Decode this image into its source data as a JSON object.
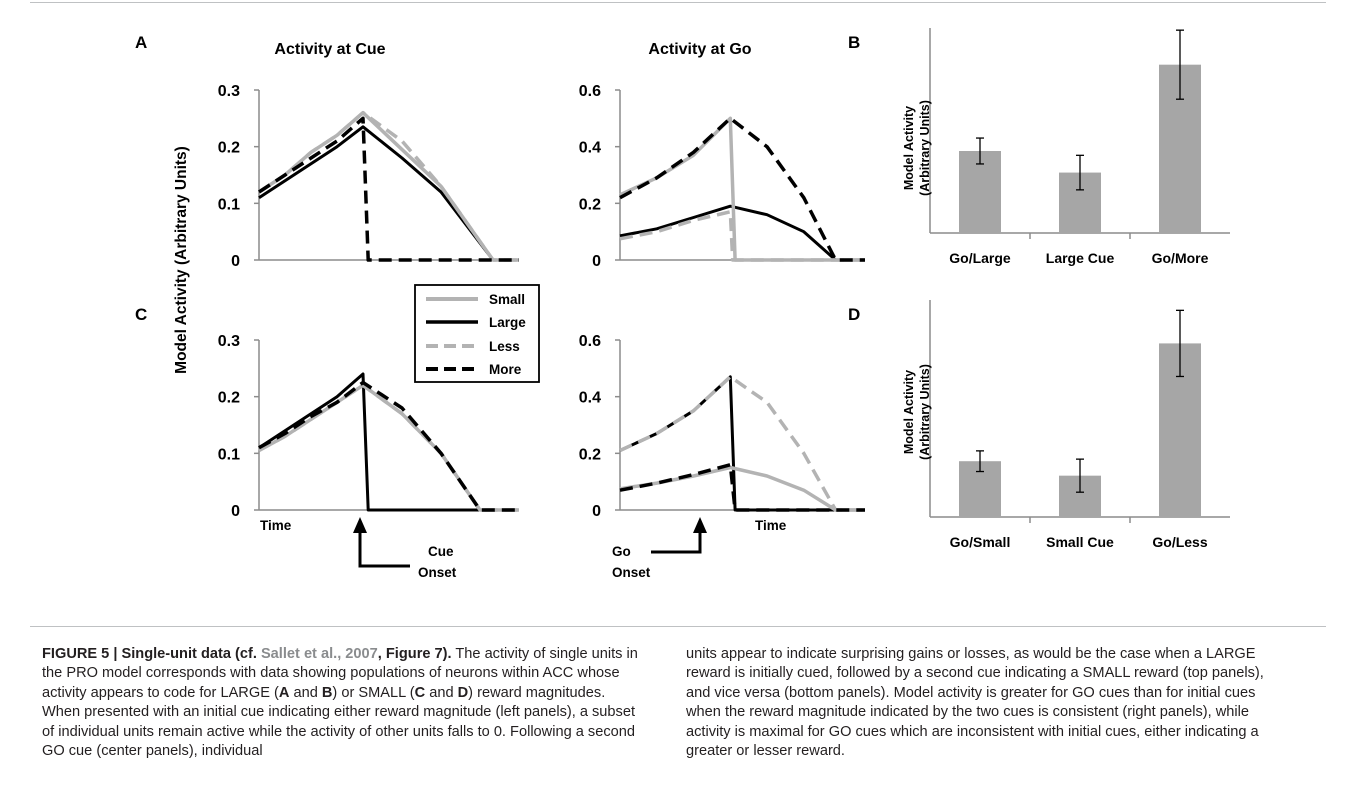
{
  "panel_letters": [
    "A",
    "B",
    "C",
    "D"
  ],
  "panel_titles": {
    "cue": "Activity at Cue",
    "go": "Activity at Go"
  },
  "shared_ylabel": "Model Activity (Arbitrary Units)",
  "bar_ylabel_line1": "Model Activity",
  "bar_ylabel_line2": "(Arbitrary Units)",
  "annotations": {
    "time_left": "Time",
    "time_right": "Time",
    "cue_onset_1": "Cue",
    "cue_onset_2": "Onset",
    "go_onset_1": "Go",
    "go_onset_2": "Onset"
  },
  "legend": [
    {
      "label": "Small",
      "color": "#b3b3b3",
      "dashed": false
    },
    {
      "label": "Large",
      "color": "#000000",
      "dashed": false
    },
    {
      "label": "Less",
      "color": "#b3b3b3",
      "dashed": true
    },
    {
      "label": "More",
      "color": "#000000",
      "dashed": true
    }
  ],
  "colors": {
    "light": "#b3b3b3",
    "dark": "#000000",
    "bar": "#a6a6a6",
    "axis": "#8c8c8c"
  },
  "chart_data": [
    {
      "id": "A-cue",
      "type": "line",
      "title": "Activity at Cue",
      "yticks": [
        "0.3",
        "0.2",
        "0.1",
        "0"
      ],
      "ylim": [
        0,
        0.3
      ],
      "xlim": [
        0,
        100
      ],
      "series": [
        {
          "name": "Small",
          "points": [
            [
              0,
              0.12
            ],
            [
              10,
              0.15
            ],
            [
              20,
              0.19
            ],
            [
              30,
              0.22
            ],
            [
              40,
              0.26
            ],
            [
              70,
              0.13
            ],
            [
              90,
              0.0
            ],
            [
              100,
              0.0
            ]
          ]
        },
        {
          "name": "Large",
          "points": [
            [
              0,
              0.11
            ],
            [
              10,
              0.14
            ],
            [
              20,
              0.17
            ],
            [
              30,
              0.2
            ],
            [
              40,
              0.235
            ],
            [
              55,
              0.18
            ],
            [
              70,
              0.12
            ],
            [
              90,
              0.0
            ],
            [
              100,
              0.0
            ]
          ]
        },
        {
          "name": "Less",
          "points": [
            [
              0,
              0.12
            ],
            [
              10,
              0.15
            ],
            [
              20,
              0.19
            ],
            [
              30,
              0.22
            ],
            [
              40,
              0.26
            ],
            [
              55,
              0.21
            ],
            [
              70,
              0.13
            ],
            [
              90,
              0.0
            ],
            [
              100,
              0.0
            ]
          ]
        },
        {
          "name": "More",
          "points": [
            [
              0,
              0.12
            ],
            [
              10,
              0.15
            ],
            [
              20,
              0.18
            ],
            [
              30,
              0.21
            ],
            [
              40,
              0.25
            ],
            [
              42,
              0.0
            ],
            [
              100,
              0.0
            ]
          ]
        }
      ]
    },
    {
      "id": "A-go",
      "type": "line",
      "title": "Activity at Go",
      "yticks": [
        "0.6",
        "0.4",
        "0.2",
        "0"
      ],
      "ylim": [
        0,
        0.6
      ],
      "xlim": [
        0,
        100
      ],
      "series": [
        {
          "name": "Small",
          "points": [
            [
              0,
              0.23
            ],
            [
              15,
              0.29
            ],
            [
              30,
              0.37
            ],
            [
              45,
              0.5
            ],
            [
              47,
              0.0
            ],
            [
              100,
              0.0
            ]
          ]
        },
        {
          "name": "Large",
          "points": [
            [
              0,
              0.085
            ],
            [
              15,
              0.11
            ],
            [
              30,
              0.15
            ],
            [
              45,
              0.19
            ],
            [
              60,
              0.16
            ],
            [
              75,
              0.1
            ],
            [
              88,
              0.0
            ],
            [
              100,
              0.0
            ]
          ]
        },
        {
          "name": "Less",
          "points": [
            [
              0,
              0.075
            ],
            [
              15,
              0.1
            ],
            [
              30,
              0.14
            ],
            [
              45,
              0.17
            ],
            [
              46,
              0.0
            ],
            [
              100,
              0.0
            ]
          ]
        },
        {
          "name": "More",
          "points": [
            [
              0,
              0.22
            ],
            [
              15,
              0.29
            ],
            [
              30,
              0.38
            ],
            [
              45,
              0.5
            ],
            [
              60,
              0.4
            ],
            [
              75,
              0.22
            ],
            [
              88,
              0.0
            ],
            [
              100,
              0.0
            ]
          ]
        }
      ]
    },
    {
      "id": "C-cue",
      "type": "line",
      "yticks": [
        "0.3",
        "0.2",
        "0.1",
        "0"
      ],
      "ylim": [
        0,
        0.3
      ],
      "xlim": [
        0,
        100
      ],
      "series": [
        {
          "name": "Small",
          "points": [
            [
              0,
              0.105
            ],
            [
              10,
              0.13
            ],
            [
              20,
              0.16
            ],
            [
              30,
              0.19
            ],
            [
              40,
              0.22
            ],
            [
              55,
              0.17
            ],
            [
              70,
              0.1
            ],
            [
              85,
              0.0
            ],
            [
              100,
              0.0
            ]
          ]
        },
        {
          "name": "Large",
          "points": [
            [
              0,
              0.11
            ],
            [
              10,
              0.14
            ],
            [
              20,
              0.17
            ],
            [
              30,
              0.2
            ],
            [
              40,
              0.24
            ],
            [
              42,
              0.0
            ],
            [
              100,
              0.0
            ]
          ]
        },
        {
          "name": "Less",
          "points": [
            [
              0,
              0.105
            ],
            [
              10,
              0.13
            ],
            [
              20,
              0.16
            ],
            [
              30,
              0.19
            ],
            [
              40,
              0.22
            ],
            [
              55,
              0.17
            ],
            [
              70,
              0.1
            ],
            [
              85,
              0.0
            ],
            [
              100,
              0.0
            ]
          ]
        },
        {
          "name": "More",
          "points": [
            [
              0,
              0.11
            ],
            [
              10,
              0.135
            ],
            [
              20,
              0.165
            ],
            [
              30,
              0.19
            ],
            [
              40,
              0.225
            ],
            [
              55,
              0.18
            ],
            [
              70,
              0.1
            ],
            [
              85,
              0.0
            ],
            [
              100,
              0.0
            ]
          ]
        }
      ]
    },
    {
      "id": "C-go",
      "type": "line",
      "yticks": [
        "0.6",
        "0.4",
        "0.2",
        "0"
      ],
      "ylim": [
        0,
        0.6
      ],
      "xlim": [
        0,
        100
      ],
      "series": [
        {
          "name": "Small",
          "points": [
            [
              0,
              0.075
            ],
            [
              15,
              0.095
            ],
            [
              30,
              0.12
            ],
            [
              45,
              0.15
            ],
            [
              60,
              0.12
            ],
            [
              75,
              0.07
            ],
            [
              88,
              0.0
            ],
            [
              100,
              0.0
            ]
          ]
        },
        {
          "name": "Large",
          "points": [
            [
              0,
              0.21
            ],
            [
              15,
              0.27
            ],
            [
              30,
              0.35
            ],
            [
              45,
              0.47
            ],
            [
              47,
              0.0
            ],
            [
              100,
              0.0
            ]
          ]
        },
        {
          "name": "Less",
          "points": [
            [
              0,
              0.21
            ],
            [
              15,
              0.27
            ],
            [
              30,
              0.35
            ],
            [
              45,
              0.47
            ],
            [
              60,
              0.38
            ],
            [
              75,
              0.2
            ],
            [
              88,
              0.0
            ],
            [
              100,
              0.0
            ]
          ]
        },
        {
          "name": "More",
          "points": [
            [
              0,
              0.07
            ],
            [
              15,
              0.095
            ],
            [
              30,
              0.125
            ],
            [
              45,
              0.16
            ],
            [
              47,
              0.0
            ],
            [
              100,
              0.0
            ]
          ]
        }
      ]
    },
    {
      "id": "B",
      "type": "bar",
      "categories": [
        "Go/Large",
        "Large Cue",
        "Go/More"
      ],
      "values": [
        0.38,
        0.28,
        0.78
      ],
      "errors": [
        0.06,
        0.08,
        0.16
      ],
      "ylim": [
        0,
        0.95
      ]
    },
    {
      "id": "D",
      "type": "bar",
      "categories": [
        "Go/Small",
        "Small Cue",
        "Go/Less"
      ],
      "values": [
        0.27,
        0.2,
        0.84
      ],
      "errors": [
        0.05,
        0.08,
        0.16
      ],
      "ylim": [
        0,
        1.05
      ]
    }
  ],
  "caption_left": {
    "label": "FIGURE 5 | Single-unit data (cf. ",
    "cite": "Sallet et al., 2007",
    "label_end": ", Figure 7).",
    "text1": " The activity of single units in the PRO model corresponds with data showing populations of neurons within ACC whose activity appears to code for LARGE (",
    "A": "A",
    "and1": " and ",
    "B": "B",
    "text2": ") or SMALL (",
    "C": "C",
    "and2": " and ",
    "D": "D",
    "text3": ") reward magnitudes. When presented with an initial cue indicating either reward magnitude (left panels), a subset of individual units remain active while the activity of other units falls to 0. Following a second GO cue (center panels), individual"
  },
  "caption_right": "units appear to indicate surprising gains or losses, as would be the case when a LARGE reward is initially cued, followed by a second cue indicating a SMALL reward (top panels), and vice versa (bottom panels). Model activity is greater for GO cues than for initial cues when the reward magnitude indicated by the two cues is consistent (right panels), while activity is maximal for GO cues which are inconsistent with initial cues, either indicating a greater or lesser reward."
}
